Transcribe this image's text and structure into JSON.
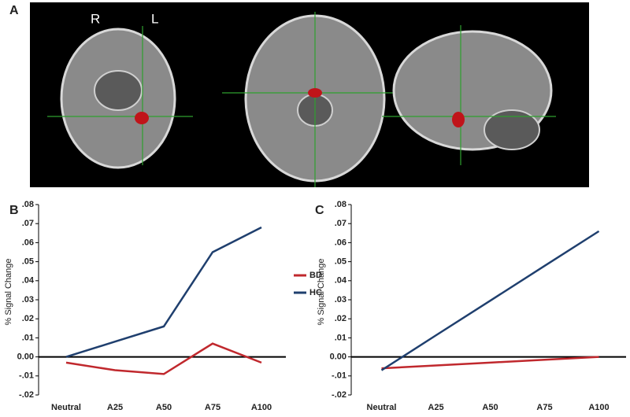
{
  "panel_labels": [
    "A",
    "B",
    "C"
  ],
  "image_labels": [
    "R",
    "L"
  ],
  "chart_data": [
    {
      "type": "line",
      "ylabel": "% Signal Change",
      "categories": [
        "Neutral",
        "A25",
        "A50",
        "A75",
        "A100"
      ],
      "series": [
        {
          "name": "BD",
          "color": "#c0282d",
          "values": [
            -0.003,
            -0.007,
            -0.009,
            0.007,
            -0.003
          ]
        },
        {
          "name": "HC",
          "color": "#1f3f6e",
          "values": [
            0.0,
            0.008,
            0.016,
            0.055,
            0.068
          ]
        }
      ],
      "ylim": [
        -0.02,
        0.08
      ],
      "yticks": [
        {
          "value": 0.08,
          "label": ".08"
        },
        {
          "value": 0.07,
          "label": ".07"
        },
        {
          "value": 0.06,
          "label": ".06"
        },
        {
          "value": 0.05,
          "label": ".05"
        },
        {
          "value": 0.04,
          "label": ".04"
        },
        {
          "value": 0.03,
          "label": ".03"
        },
        {
          "value": 0.02,
          "label": ".02"
        },
        {
          "value": 0.01,
          "label": ".01"
        },
        {
          "value": 0,
          "label": "0.00"
        },
        {
          "value": -0.01,
          "label": "-.01"
        },
        {
          "value": -0.02,
          "label": "-.02"
        }
      ],
      "legend": "right"
    },
    {
      "type": "line",
      "ylabel": "% Signal Change",
      "categories": [
        "Neutral",
        "A25",
        "A50",
        "A75",
        "A100"
      ],
      "series": [
        {
          "color": "#c0282d",
          "values": [
            -0.006,
            -0.0045,
            -0.003,
            -0.0015,
            0.0
          ]
        },
        {
          "color": "#1f3f6e",
          "values": [
            -0.007,
            0.0113,
            0.0295,
            0.0478,
            0.066
          ]
        }
      ],
      "ylim": [
        -0.02,
        0.08
      ],
      "yticks": [
        {
          "value": 0.08,
          "label": ".08"
        },
        {
          "value": 0.07,
          "label": ".07"
        },
        {
          "value": 0.06,
          "label": ".06"
        },
        {
          "value": 0.05,
          "label": ".05"
        },
        {
          "value": 0.04,
          "label": ".04"
        },
        {
          "value": 0.03,
          "label": ".03"
        },
        {
          "value": 0.02,
          "label": ".02"
        },
        {
          "value": 0.01,
          "label": ".01"
        },
        {
          "value": 0,
          "label": "0.00"
        },
        {
          "value": -0.01,
          "label": "-.01"
        },
        {
          "value": -0.02,
          "label": "-.02"
        }
      ]
    }
  ]
}
